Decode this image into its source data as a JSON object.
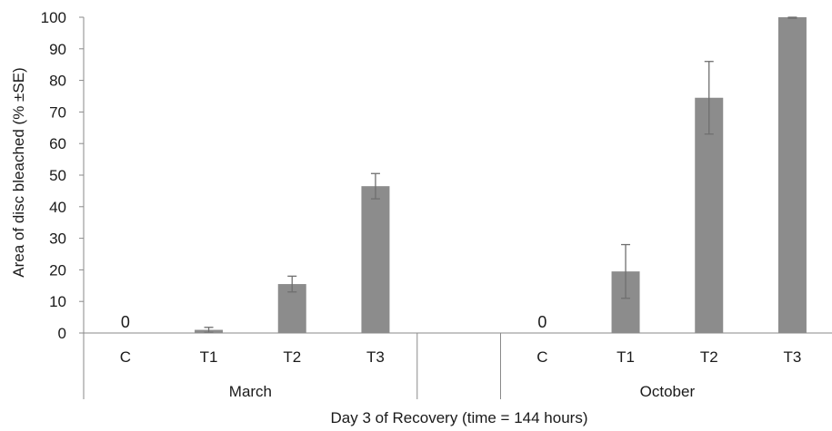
{
  "chart_data": {
    "type": "bar",
    "xlabel": "Day 3 of Recovery (time = 144 hours)",
    "ylabel": "Area of disc bleached (% ±SE)",
    "ylim": [
      0,
      100
    ],
    "yticks": [
      0,
      10,
      20,
      30,
      40,
      50,
      60,
      70,
      80,
      90,
      100
    ],
    "grid": false,
    "legend": "none",
    "bar_color": "#8c8c8c",
    "groups": [
      {
        "name": "March",
        "categories": [
          "C",
          "T1",
          "T2",
          "T3"
        ],
        "values": [
          0,
          1,
          15.5,
          46.5
        ],
        "errors": [
          0,
          0.8,
          2.5,
          4
        ],
        "data_labels": [
          "0",
          "",
          "",
          ""
        ]
      },
      {
        "name": "October",
        "categories": [
          "C",
          "T1",
          "T2",
          "T3"
        ],
        "values": [
          0,
          19.5,
          74.5,
          100
        ],
        "errors": [
          0,
          8.5,
          11.5,
          0.3
        ],
        "data_labels": [
          "0",
          "",
          "",
          ""
        ]
      }
    ]
  }
}
